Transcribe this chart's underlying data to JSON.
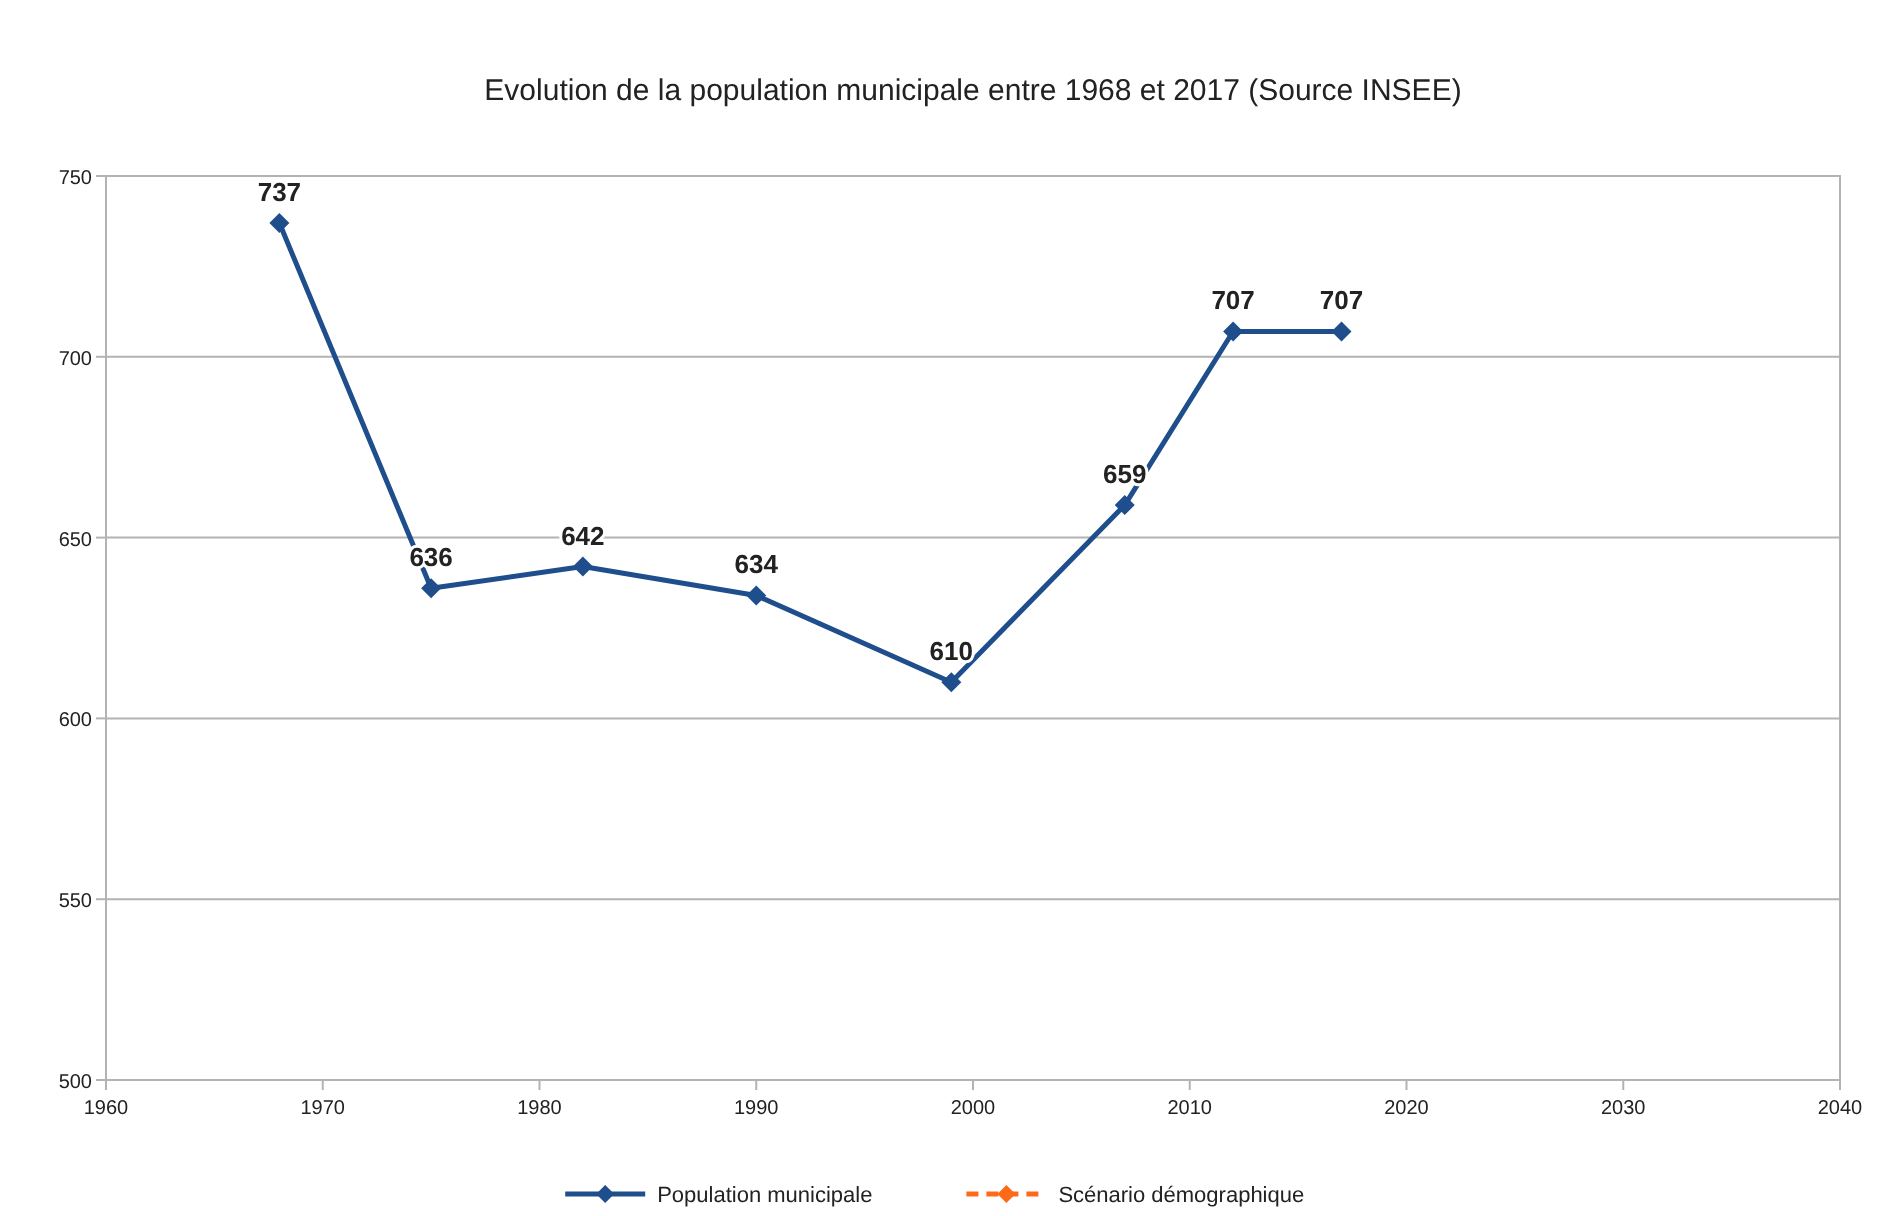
{
  "chart_data": {
    "type": "line",
    "title": "Evolution de la population municipale entre 1968 et 2017 (Source INSEE)",
    "x": [
      1968,
      1975,
      1982,
      1990,
      1999,
      2007,
      2012,
      2017
    ],
    "series": [
      {
        "name": "Population municipale",
        "color": "#1f4e8c",
        "values": [
          737,
          636,
          642,
          634,
          610,
          659,
          707,
          707
        ],
        "marker": "diamond",
        "line_style": "solid"
      },
      {
        "name": "Scénario démographique",
        "color": "#ff6a1a",
        "values": [
          null,
          null,
          null,
          null,
          null,
          null,
          null,
          null
        ],
        "marker": "diamond",
        "line_style": "dashed"
      }
    ],
    "xlim": [
      1960,
      2040
    ],
    "xticks": [
      1960,
      1970,
      1980,
      1990,
      2000,
      2010,
      2020,
      2030,
      2040
    ],
    "ylim": [
      500,
      750
    ],
    "yticks": [
      500,
      550,
      600,
      650,
      700,
      750
    ],
    "grid": "y",
    "legend": "bottom",
    "data_labels": true
  }
}
